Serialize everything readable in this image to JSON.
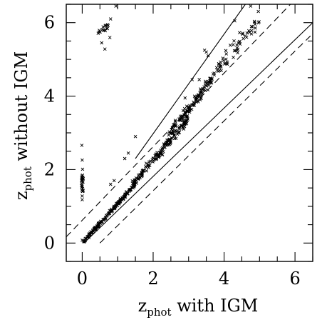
{
  "chart_data": {
    "type": "scatter",
    "title": "",
    "xlabel": {
      "main": "z",
      "subscript": "phot",
      "suffix": " with IGM"
    },
    "ylabel": {
      "main": "z",
      "subscript": "phot",
      "suffix": " without IGM"
    },
    "xlim": [
      -0.45,
      6.5
    ],
    "ylim": [
      -0.5,
      6.5
    ],
    "x_ticks": [
      0,
      2,
      4,
      6
    ],
    "y_ticks": [
      0,
      2,
      4,
      6
    ],
    "x_tick_labels": [
      "0",
      "2",
      "4",
      "6"
    ],
    "y_tick_labels": [
      "0",
      "2",
      "4",
      "6"
    ],
    "minor_tick_step": 0.5,
    "grid": false,
    "marker": "x",
    "reference_lines": [
      {
        "name": "dashed-upper",
        "style": "dashed",
        "x": [
          -0.45,
          6.5
        ],
        "y": [
          0.17,
          7.13
        ]
      },
      {
        "name": "dashed-lower",
        "style": "dashed",
        "x": [
          0.5,
          6.5
        ],
        "y": [
          0.0,
          5.7
        ]
      },
      {
        "name": "solid-upper",
        "style": "solid",
        "x": [
          1.5,
          4.6
        ],
        "y": [
          2.3,
          6.5
        ]
      },
      {
        "name": "solid-lower",
        "style": "solid",
        "x": [
          0.05,
          6.5
        ],
        "y": [
          0.0,
          6.0
        ]
      }
    ],
    "point_clusters": [
      {
        "name": "main-sequence",
        "x_range": [
          0.05,
          1.5
        ],
        "slope": 1.07,
        "jitter": 0.04,
        "n": 180
      },
      {
        "name": "mid-sequence",
        "x_range": [
          1.4,
          3.0
        ],
        "slope": 1.13,
        "jitter": 0.1,
        "n": 150
      },
      {
        "name": "upper-branch",
        "x_range": [
          2.4,
          3.7
        ],
        "slope": 1.22,
        "jitter": 0.12,
        "n": 120
      },
      {
        "name": "high-z-branch",
        "x_range": [
          3.7,
          5.0
        ],
        "slope": 1.23,
        "jitter": 0.2,
        "n": 60
      },
      {
        "name": "zero-column",
        "x_range": [
          -0.02,
          0.03
        ],
        "y_range": [
          1.4,
          1.85
        ],
        "n": 25
      },
      {
        "name": "outlier-group",
        "x_range": [
          0.45,
          0.8
        ],
        "y_range": [
          5.5,
          5.95
        ],
        "n": 16
      }
    ],
    "points": [
      [
        -0.01,
        2.66
      ],
      [
        0.0,
        2.26
      ],
      [
        0.01,
        2.01
      ],
      [
        0.0,
        1.18
      ],
      [
        0.0,
        1.28
      ],
      [
        0.0,
        0.08
      ],
      [
        0.03,
        0.06
      ],
      [
        0.05,
        0.05
      ],
      [
        0.95,
        6.45
      ],
      [
        0.8,
        6.1
      ],
      [
        0.65,
        5.92
      ],
      [
        0.55,
        5.45
      ],
      [
        0.64,
        5.28
      ],
      [
        3.45,
        5.25
      ],
      [
        3.55,
        5.1
      ],
      [
        3.5,
        5.2
      ],
      [
        4.3,
        6.05
      ],
      [
        4.75,
        6.45
      ],
      [
        4.95,
        6.55
      ],
      [
        1.5,
        2.9
      ],
      [
        1.3,
        2.45
      ],
      [
        1.2,
        2.3
      ],
      [
        0.9,
        1.7
      ],
      [
        0.8,
        1.6
      ],
      [
        1.25,
        1.4
      ],
      [
        2.9,
        3.95
      ],
      [
        3.1,
        4.45
      ],
      [
        3.3,
        4.45
      ]
    ]
  }
}
